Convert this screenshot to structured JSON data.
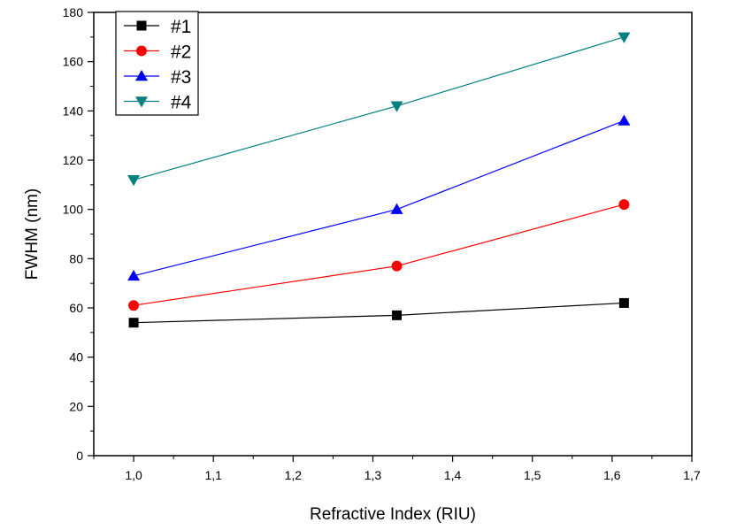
{
  "chart_data": {
    "type": "line",
    "xlabel": "Refractive Index (RIU)",
    "ylabel": "FWHM (nm)",
    "xlim": [
      0.95,
      1.7
    ],
    "ylim": [
      0,
      180
    ],
    "x_ticks": [
      "1,0",
      "1,1",
      "1,2",
      "1,3",
      "1,4",
      "1,5",
      "1,6",
      "1,7"
    ],
    "y_ticks": [
      "0",
      "20",
      "40",
      "60",
      "80",
      "100",
      "120",
      "140",
      "160",
      "180"
    ],
    "x": [
      1.0,
      1.33,
      1.615
    ],
    "series": [
      {
        "name": "#1",
        "values": [
          54,
          57,
          62
        ],
        "color": "#000000",
        "marker": "square"
      },
      {
        "name": "#2",
        "values": [
          61,
          77,
          102
        ],
        "color": "#ff0000",
        "marker": "circle"
      },
      {
        "name": "#3",
        "values": [
          73,
          100,
          136
        ],
        "color": "#0000ff",
        "marker": "triangle-up"
      },
      {
        "name": "#4",
        "values": [
          112,
          142,
          170
        ],
        "color": "#008080",
        "marker": "triangle-down"
      }
    ],
    "grid": false,
    "legend": "top-left"
  }
}
